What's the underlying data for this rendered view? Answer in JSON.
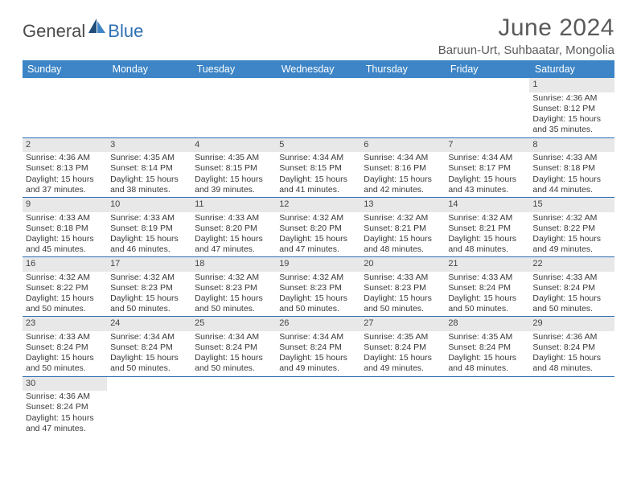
{
  "logo": {
    "general": "General",
    "blue": "Blue"
  },
  "title": "June 2024",
  "location": "Baruun-Urt, Suhbaatar, Mongolia",
  "colors": {
    "header_bg": "#3d85c6",
    "header_text": "#ffffff",
    "border": "#2f6fb3",
    "daynum_bg": "#e8e8e8",
    "text": "#3a3a3a",
    "title_text": "#5a5a5a",
    "logo_gray": "#4a4a4a",
    "logo_blue": "#2f6fb3"
  },
  "fonts": {
    "title_size": 30,
    "location_size": 15,
    "dayheader_size": 12.5,
    "cell_size": 10.5
  },
  "day_headers": [
    "Sunday",
    "Monday",
    "Tuesday",
    "Wednesday",
    "Thursday",
    "Friday",
    "Saturday"
  ],
  "weeks": [
    [
      null,
      null,
      null,
      null,
      null,
      null,
      {
        "n": "1",
        "sr": "4:36 AM",
        "ss": "8:12 PM",
        "dl": "15 hours and 35 minutes."
      }
    ],
    [
      {
        "n": "2",
        "sr": "4:36 AM",
        "ss": "8:13 PM",
        "dl": "15 hours and 37 minutes."
      },
      {
        "n": "3",
        "sr": "4:35 AM",
        "ss": "8:14 PM",
        "dl": "15 hours and 38 minutes."
      },
      {
        "n": "4",
        "sr": "4:35 AM",
        "ss": "8:15 PM",
        "dl": "15 hours and 39 minutes."
      },
      {
        "n": "5",
        "sr": "4:34 AM",
        "ss": "8:15 PM",
        "dl": "15 hours and 41 minutes."
      },
      {
        "n": "6",
        "sr": "4:34 AM",
        "ss": "8:16 PM",
        "dl": "15 hours and 42 minutes."
      },
      {
        "n": "7",
        "sr": "4:34 AM",
        "ss": "8:17 PM",
        "dl": "15 hours and 43 minutes."
      },
      {
        "n": "8",
        "sr": "4:33 AM",
        "ss": "8:18 PM",
        "dl": "15 hours and 44 minutes."
      }
    ],
    [
      {
        "n": "9",
        "sr": "4:33 AM",
        "ss": "8:18 PM",
        "dl": "15 hours and 45 minutes."
      },
      {
        "n": "10",
        "sr": "4:33 AM",
        "ss": "8:19 PM",
        "dl": "15 hours and 46 minutes."
      },
      {
        "n": "11",
        "sr": "4:33 AM",
        "ss": "8:20 PM",
        "dl": "15 hours and 47 minutes."
      },
      {
        "n": "12",
        "sr": "4:32 AM",
        "ss": "8:20 PM",
        "dl": "15 hours and 47 minutes."
      },
      {
        "n": "13",
        "sr": "4:32 AM",
        "ss": "8:21 PM",
        "dl": "15 hours and 48 minutes."
      },
      {
        "n": "14",
        "sr": "4:32 AM",
        "ss": "8:21 PM",
        "dl": "15 hours and 48 minutes."
      },
      {
        "n": "15",
        "sr": "4:32 AM",
        "ss": "8:22 PM",
        "dl": "15 hours and 49 minutes."
      }
    ],
    [
      {
        "n": "16",
        "sr": "4:32 AM",
        "ss": "8:22 PM",
        "dl": "15 hours and 50 minutes."
      },
      {
        "n": "17",
        "sr": "4:32 AM",
        "ss": "8:23 PM",
        "dl": "15 hours and 50 minutes."
      },
      {
        "n": "18",
        "sr": "4:32 AM",
        "ss": "8:23 PM",
        "dl": "15 hours and 50 minutes."
      },
      {
        "n": "19",
        "sr": "4:32 AM",
        "ss": "8:23 PM",
        "dl": "15 hours and 50 minutes."
      },
      {
        "n": "20",
        "sr": "4:33 AM",
        "ss": "8:23 PM",
        "dl": "15 hours and 50 minutes."
      },
      {
        "n": "21",
        "sr": "4:33 AM",
        "ss": "8:24 PM",
        "dl": "15 hours and 50 minutes."
      },
      {
        "n": "22",
        "sr": "4:33 AM",
        "ss": "8:24 PM",
        "dl": "15 hours and 50 minutes."
      }
    ],
    [
      {
        "n": "23",
        "sr": "4:33 AM",
        "ss": "8:24 PM",
        "dl": "15 hours and 50 minutes."
      },
      {
        "n": "24",
        "sr": "4:34 AM",
        "ss": "8:24 PM",
        "dl": "15 hours and 50 minutes."
      },
      {
        "n": "25",
        "sr": "4:34 AM",
        "ss": "8:24 PM",
        "dl": "15 hours and 50 minutes."
      },
      {
        "n": "26",
        "sr": "4:34 AM",
        "ss": "8:24 PM",
        "dl": "15 hours and 49 minutes."
      },
      {
        "n": "27",
        "sr": "4:35 AM",
        "ss": "8:24 PM",
        "dl": "15 hours and 49 minutes."
      },
      {
        "n": "28",
        "sr": "4:35 AM",
        "ss": "8:24 PM",
        "dl": "15 hours and 48 minutes."
      },
      {
        "n": "29",
        "sr": "4:36 AM",
        "ss": "8:24 PM",
        "dl": "15 hours and 48 minutes."
      }
    ],
    [
      {
        "n": "30",
        "sr": "4:36 AM",
        "ss": "8:24 PM",
        "dl": "15 hours and 47 minutes."
      },
      null,
      null,
      null,
      null,
      null,
      null
    ]
  ],
  "labels": {
    "sunrise": "Sunrise: ",
    "sunset": "Sunset: ",
    "daylight": "Daylight: "
  }
}
